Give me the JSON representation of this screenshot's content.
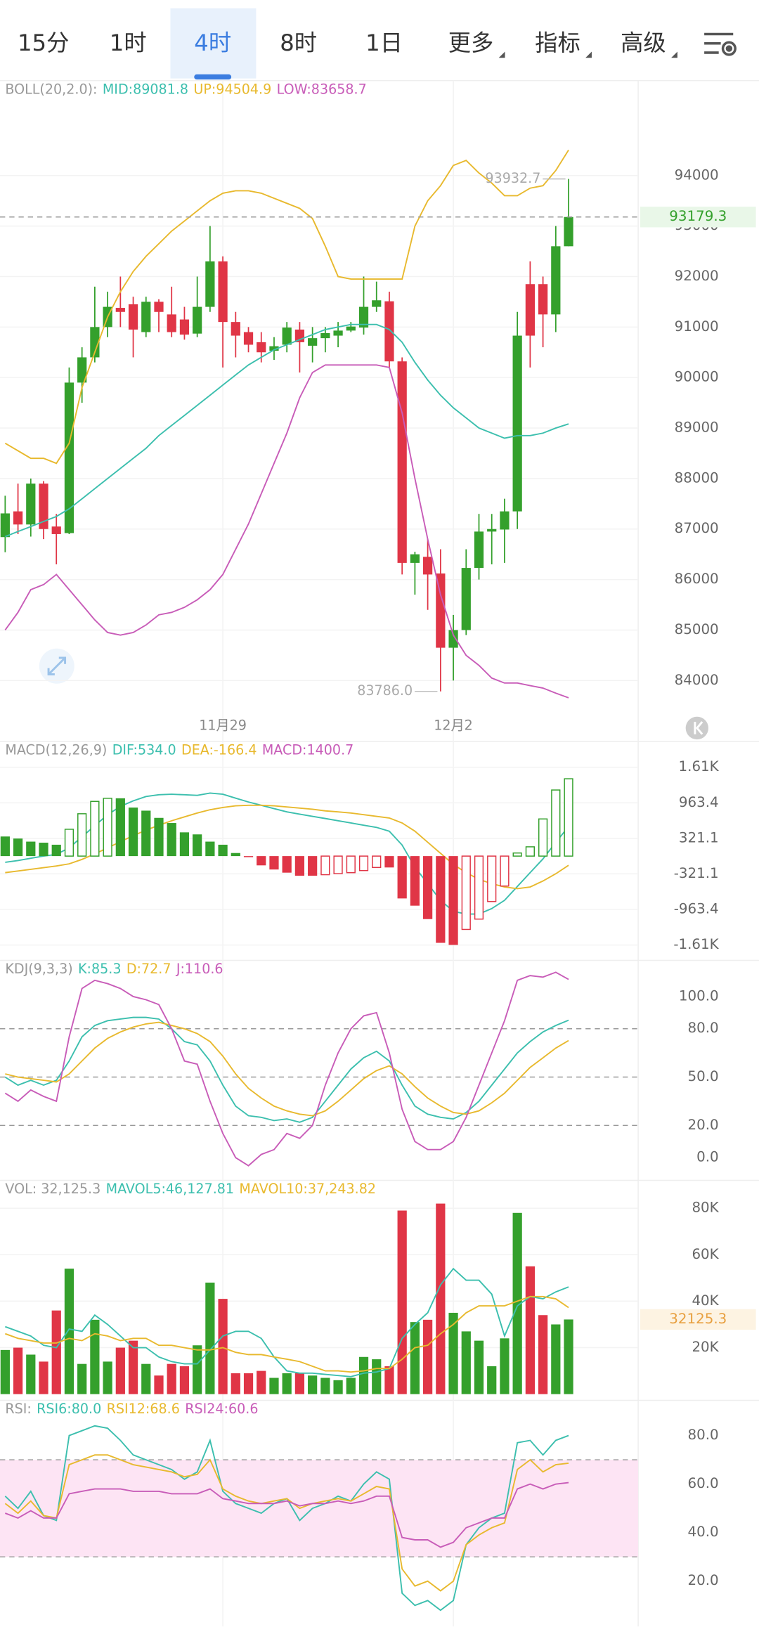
{
  "tabs": [
    "15分",
    "1时",
    "4时",
    "8时",
    "1日",
    "更多",
    "指标",
    "高级"
  ],
  "selected_tab": 2,
  "chart_data": [
    {
      "type": "candlestick",
      "legend_title": "BOLL(20,2.0):",
      "up_color": "#34a02c",
      "down_color": "#e03546",
      "categories": [
        null,
        null,
        null,
        null,
        null,
        null,
        null,
        null,
        null,
        null,
        null,
        null,
        null,
        null,
        null,
        null,
        null,
        "11月29",
        null,
        null,
        null,
        null,
        null,
        null,
        null,
        null,
        null,
        null,
        null,
        null,
        null,
        null,
        null,
        null,
        null,
        "12月2",
        null,
        null,
        null,
        null,
        null,
        null,
        null,
        null,
        null
      ],
      "open": [
        86840,
        87350,
        87090,
        87900,
        87050,
        86920,
        89900,
        90400,
        91000,
        91380,
        91450,
        90900,
        91500,
        91250,
        91150,
        90870,
        91400,
        92300,
        91100,
        90900,
        90700,
        90530,
        90650,
        90950,
        90630,
        90780,
        90830,
        90930,
        90990,
        91400,
        91510,
        90320,
        86330,
        86450,
        86120,
        84650,
        85000,
        86230,
        86950,
        86990,
        87350,
        91850,
        91850,
        91250,
        92600
      ],
      "high": [
        87660,
        87900,
        88000,
        87950,
        87300,
        90200,
        90600,
        91800,
        91700,
        92000,
        91600,
        91600,
        91550,
        91800,
        91400,
        92000,
        93000,
        92400,
        91300,
        91000,
        90900,
        90800,
        91100,
        91100,
        91000,
        91000,
        91100,
        91100,
        92000,
        91900,
        91700,
        90400,
        86550,
        86800,
        86600,
        85300,
        86600,
        87300,
        87300,
        87600,
        91300,
        92300,
        92000,
        93000,
        93932.7
      ],
      "low": [
        86540,
        86900,
        86850,
        86800,
        86300,
        86900,
        89500,
        90300,
        90800,
        91000,
        90400,
        90800,
        90900,
        90800,
        90750,
        90800,
        91300,
        90200,
        90400,
        90500,
        90300,
        90350,
        90500,
        90100,
        90300,
        90500,
        90600,
        90900,
        90850,
        91300,
        90200,
        86100,
        85700,
        85400,
        83786,
        84000,
        84900,
        86000,
        86300,
        86330,
        87000,
        90200,
        90600,
        90900,
        92600
      ],
      "close": [
        87310,
        87090,
        87900,
        87000,
        86900,
        89900,
        90400,
        91000,
        91400,
        91300,
        90950,
        91500,
        91300,
        90900,
        90850,
        91400,
        92300,
        91100,
        90830,
        90650,
        90500,
        90620,
        90990,
        90700,
        90780,
        90880,
        90930,
        91010,
        91400,
        91530,
        90320,
        86330,
        86500,
        86100,
        84650,
        85000,
        86230,
        86950,
        87000,
        87350,
        90830,
        90830,
        91250,
        92600,
        93179.3
      ],
      "series": [
        {
          "name": "MID:89081.8",
          "color": "#3cbfae",
          "values": [
            86850,
            86950,
            87050,
            87150,
            87250,
            87400,
            87600,
            87800,
            88000,
            88200,
            88400,
            88600,
            88850,
            89050,
            89250,
            89450,
            89650,
            89850,
            90050,
            90250,
            90400,
            90550,
            90650,
            90750,
            90850,
            90950,
            91000,
            91050,
            91050,
            91050,
            90950,
            90700,
            90300,
            89950,
            89650,
            89400,
            89200,
            89000,
            88900,
            88800,
            88850,
            88850,
            88900,
            89000,
            89081.8
          ]
        },
        {
          "name": "UP:94504.9",
          "color": "#e8b92e",
          "values": [
            88700,
            88550,
            88400,
            88400,
            88300,
            88700,
            89800,
            90500,
            91200,
            91700,
            92100,
            92400,
            92650,
            92900,
            93100,
            93300,
            93500,
            93650,
            93700,
            93700,
            93650,
            93550,
            93450,
            93350,
            93150,
            92600,
            92000,
            91950,
            91950,
            91950,
            91950,
            91950,
            93000,
            93500,
            93800,
            94200,
            94300,
            94050,
            93850,
            93600,
            93600,
            93750,
            93800,
            94100,
            94504.9
          ]
        },
        {
          "name": "LOW:83658.7",
          "color": "#c85cb8",
          "values": [
            85000,
            85350,
            85800,
            85900,
            86100,
            85800,
            85500,
            85200,
            84950,
            84900,
            84950,
            85100,
            85300,
            85350,
            85450,
            85600,
            85800,
            86100,
            86600,
            87100,
            87700,
            88300,
            88900,
            89600,
            90100,
            90250,
            90250,
            90250,
            90250,
            90250,
            90200,
            89300,
            88000,
            86800,
            85700,
            84900,
            84500,
            84300,
            84050,
            83950,
            83950,
            83900,
            83850,
            83750,
            83658.7
          ]
        }
      ],
      "current_price": 93179.3,
      "high_mark": 93932.7,
      "low_mark": {
        "value": 83786,
        "label": "83786.0"
      },
      "ylim": [
        83407,
        95881
      ],
      "yticks": [
        84000,
        85000,
        86000,
        87000,
        88000,
        89000,
        90000,
        91000,
        92000,
        93000,
        94000
      ],
      "grid": true
    },
    {
      "type": "bar",
      "legend_title": "MACD(12,26,9)",
      "series": [
        {
          "name": "DIF:534.0",
          "type": "line",
          "color": "#3cbfae",
          "values": [
            -112,
            -80,
            -40,
            0,
            30,
            150,
            350,
            550,
            750,
            900,
            1000,
            1080,
            1110,
            1120,
            1110,
            1100,
            1140,
            1120,
            1050,
            980,
            920,
            860,
            800,
            760,
            720,
            680,
            640,
            600,
            560,
            520,
            450,
            200,
            -200,
            -500,
            -800,
            -1000,
            -1050,
            -1050,
            -950,
            -800,
            -550,
            -300,
            -50,
            250,
            534
          ]
        },
        {
          "name": "DEA:-166.4",
          "type": "line",
          "color": "#e8b92e",
          "values": [
            -300,
            -270,
            -240,
            -210,
            -180,
            -140,
            -60,
            40,
            150,
            260,
            370,
            470,
            560,
            640,
            710,
            780,
            840,
            880,
            910,
            920,
            920,
            910,
            890,
            870,
            850,
            820,
            800,
            780,
            750,
            720,
            690,
            600,
            450,
            250,
            50,
            -150,
            -300,
            -420,
            -500,
            -560,
            -590,
            -560,
            -450,
            -320,
            -166.4
          ]
        },
        {
          "name": "MACD:1400.7",
          "type": "bar",
          "hollow_on_rise": true,
          "color": "#c85cb8",
          "values": [
            355,
            318,
            262,
            243,
            206,
            486,
            767,
            991,
            1047,
            1047,
            879,
            823,
            692,
            599,
            430,
            393,
            262,
            206,
            56,
            -19,
            -168,
            -243,
            -300,
            -355,
            -355,
            -337,
            -318,
            -300,
            -262,
            -206,
            -206,
            -767,
            -898,
            -1141,
            -1571,
            -1609,
            -1328,
            -1141,
            -823,
            -542,
            56,
            168,
            673,
            1197,
            1400.7
          ]
        }
      ],
      "ylim": [
        -1889,
        2076
      ],
      "yticks": [
        {
          "value": 1610,
          "label": "1.61K"
        },
        963.4,
        321.1,
        -321.1,
        -963.4,
        {
          "value": -1610,
          "label": "-1.61K"
        }
      ],
      "grid": true
    },
    {
      "type": "line",
      "legend_title": "KDJ(9,3,3)",
      "series": [
        {
          "name": "K:85.3",
          "color": "#3cbfae",
          "values": [
            50,
            45,
            48,
            45,
            48,
            60,
            75,
            82,
            85,
            86,
            87,
            87,
            86,
            80,
            72,
            70,
            60,
            45,
            32,
            26,
            25,
            23,
            24,
            22,
            25,
            35,
            45,
            55,
            62,
            66,
            60,
            45,
            32,
            27,
            25,
            24,
            28,
            35,
            45,
            55,
            65,
            72,
            78,
            82,
            85.3
          ]
        },
        {
          "name": "D:72.7",
          "color": "#e8b92e",
          "values": [
            52,
            50,
            49,
            48,
            47,
            52,
            60,
            68,
            74,
            78,
            81,
            83,
            84,
            82,
            80,
            77,
            72,
            63,
            52,
            43,
            37,
            32,
            29,
            27,
            26,
            29,
            35,
            42,
            49,
            54,
            57,
            52,
            44,
            37,
            32,
            28,
            27,
            29,
            34,
            40,
            48,
            56,
            62,
            68,
            72.7
          ]
        },
        {
          "name": "J:110.6",
          "color": "#c85cb8",
          "values": [
            40,
            35,
            42,
            38,
            35,
            75,
            105,
            110,
            108,
            105,
            100,
            98,
            95,
            80,
            60,
            58,
            35,
            15,
            0,
            -5,
            2,
            5,
            15,
            12,
            20,
            45,
            65,
            80,
            88,
            90,
            65,
            30,
            10,
            5,
            5,
            10,
            25,
            45,
            65,
            85,
            110,
            113,
            112,
            115,
            110.6
          ]
        }
      ],
      "ref_lines": [
        80,
        50,
        20
      ],
      "ylim": [
        -14.1,
        122.4
      ],
      "yticks": [
        {
          "value": 100,
          "label": "100.0"
        },
        {
          "value": 80,
          "label": "80.0"
        },
        {
          "value": 50,
          "label": "50.0"
        },
        {
          "value": 20,
          "label": "20.0"
        },
        {
          "value": 0,
          "label": "0.0"
        }
      ]
    },
    {
      "type": "bar",
      "series": [
        {
          "name": "VOL: 32,125.3",
          "type": "bar",
          "color": "#999999",
          "values": [
            19000,
            20000,
            17000,
            14000,
            36000,
            54000,
            13000,
            32000,
            14000,
            20000,
            23000,
            13000,
            8000,
            13000,
            12000,
            21000,
            48000,
            41000,
            9000,
            9000,
            10000,
            7000,
            9000,
            9000,
            8000,
            7000,
            6000,
            7000,
            16000,
            15000,
            12000,
            79000,
            31000,
            32000,
            82000,
            35000,
            27000,
            23000,
            12000,
            24000,
            78000,
            55000,
            34000,
            30000,
            32125.3
          ]
        },
        {
          "name": "MAVOL5:46,127.81",
          "type": "line",
          "color": "#3cbfae",
          "values": [
            29000,
            27000,
            25000,
            21000,
            20000,
            28000,
            27000,
            34000,
            30000,
            25000,
            20000,
            20000,
            16000,
            14000,
            13000,
            13000,
            19000,
            25000,
            27000,
            27000,
            24000,
            16000,
            10000,
            9000,
            9000,
            8500,
            8000,
            7500,
            9000,
            9500,
            11000,
            24000,
            30000,
            35000,
            47000,
            54000,
            49000,
            49000,
            43000,
            25000,
            38000,
            42000,
            41000,
            44000,
            46127.81
          ]
        },
        {
          "name": "MAVOL10:37,243.82",
          "type": "line",
          "color": "#e8b92e",
          "values": [
            26000,
            24000,
            23000,
            22000,
            22000,
            24000,
            23000,
            26000,
            25000,
            23000,
            24000,
            24000,
            21000,
            21000,
            20000,
            19000,
            19000,
            20000,
            18000,
            17000,
            17000,
            16000,
            15000,
            14000,
            12000,
            10000,
            10000,
            9500,
            10000,
            11000,
            11000,
            15000,
            20000,
            21000,
            26000,
            30000,
            35000,
            38000,
            38000,
            38000,
            40000,
            42000,
            42000,
            41000,
            37243.82
          ]
        }
      ],
      "current_value": 32125.3,
      "ylim": [
        -2667,
        92000
      ],
      "yticks": [
        {
          "value": 80000,
          "label": "80K"
        },
        {
          "value": 60000,
          "label": "60K"
        },
        {
          "value": 40000,
          "label": "40K"
        },
        {
          "value": 20000,
          "label": "20K"
        }
      ],
      "grid": true
    },
    {
      "type": "line",
      "legend_title": "RSI:",
      "series": [
        {
          "name": "RSI6:80.0",
          "color": "#3cbfae",
          "values": [
            55,
            50,
            57,
            47,
            45,
            80,
            82,
            84,
            83,
            78,
            72,
            70,
            68,
            66,
            62,
            65,
            78,
            57,
            52,
            50,
            48,
            52,
            54,
            45,
            50,
            52,
            55,
            53,
            60,
            65,
            62,
            15,
            10,
            12,
            8,
            12,
            35,
            42,
            46,
            48,
            77,
            78,
            72,
            78,
            80
          ]
        },
        {
          "name": "RSI12:68.6",
          "color": "#e8b92e",
          "values": [
            52,
            48,
            53,
            47,
            46,
            68,
            70,
            72,
            72,
            70,
            68,
            67,
            66,
            65,
            63,
            64,
            70,
            58,
            55,
            53,
            52,
            53,
            54,
            50,
            52,
            53,
            54,
            53,
            56,
            59,
            58,
            25,
            18,
            20,
            16,
            20,
            35,
            39,
            42,
            44,
            66,
            70,
            65,
            68,
            68.6
          ]
        },
        {
          "name": "RSI24:60.6",
          "color": "#c85cb8",
          "values": [
            48,
            46,
            49,
            46,
            46,
            56,
            57,
            58,
            58,
            58,
            57,
            57,
            57,
            56,
            56,
            56,
            58,
            54,
            53,
            52,
            52,
            52,
            53,
            51,
            52,
            52,
            53,
            52,
            53,
            55,
            55,
            38,
            37,
            37,
            34,
            36,
            42,
            44,
            46,
            46,
            58,
            60,
            58,
            60,
            60.6
          ]
        }
      ],
      "band": [
        30,
        70
      ],
      "ref_lines": [
        70,
        30
      ],
      "ylim": [
        1.3,
        94.5
      ],
      "yticks": [
        {
          "value": 80,
          "label": "80.0"
        },
        {
          "value": 60,
          "label": "60.0"
        },
        {
          "value": 40,
          "label": "40.0"
        },
        {
          "value": 20,
          "label": "20.0"
        }
      ]
    }
  ]
}
